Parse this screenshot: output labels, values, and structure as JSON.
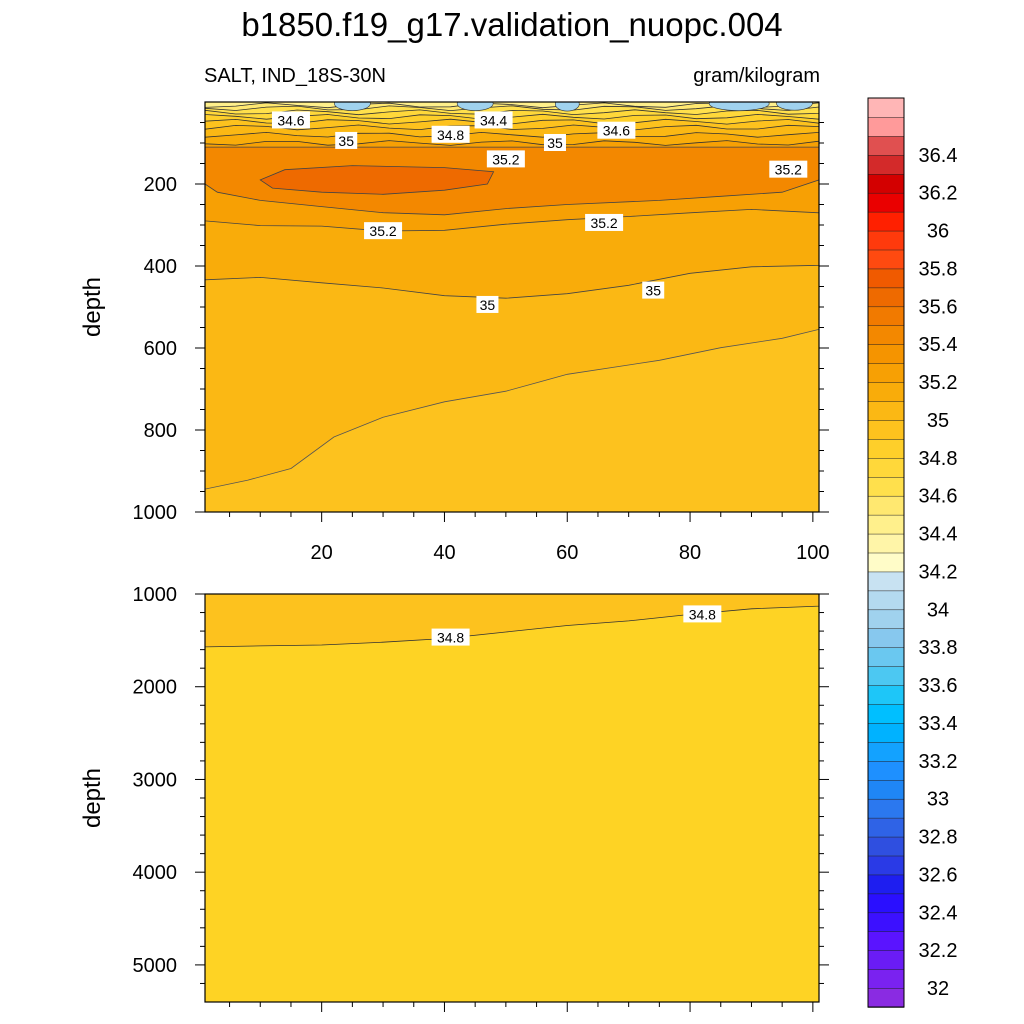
{
  "chart_data": {
    "type": "contour",
    "title": "b1850.f19_g17.validation_nuopc.004",
    "variable_label": "SALT, IND_18S-30N",
    "units_label": "gram/kilogram",
    "panels": [
      {
        "name": "upper",
        "ylabel": "depth",
        "xlim": [
          1,
          101
        ],
        "ylim": [
          0,
          1000
        ],
        "y_inverted": true,
        "x_ticks": [
          20,
          40,
          60,
          80,
          100
        ],
        "x_tick_labels": [
          "20",
          "40",
          "60",
          "80",
          "100"
        ],
        "y_ticks": [
          200,
          400,
          600,
          800,
          1000
        ],
        "y_tick_labels": [
          "200",
          "400",
          "600",
          "800",
          "1000"
        ],
        "contour_labels": [
          {
            "text": "34.6",
            "x": 15,
            "y": 45
          },
          {
            "text": "34.4",
            "x": 48,
            "y": 45
          },
          {
            "text": "35",
            "x": 24,
            "y": 95
          },
          {
            "text": "34.8",
            "x": 41,
            "y": 80
          },
          {
            "text": "35",
            "x": 58,
            "y": 100
          },
          {
            "text": "34.6",
            "x": 68,
            "y": 70
          },
          {
            "text": "35.2",
            "x": 50,
            "y": 140
          },
          {
            "text": "35.2",
            "x": 96,
            "y": 165
          },
          {
            "text": "35.2",
            "x": 30,
            "y": 315
          },
          {
            "text": "35.2",
            "x": 66,
            "y": 295
          },
          {
            "text": "35",
            "x": 47,
            "y": 495
          },
          {
            "text": "35",
            "x": 74,
            "y": 460
          }
        ]
      },
      {
        "name": "lower",
        "ylabel": "depth",
        "xlim": [
          1,
          101
        ],
        "ylim": [
          1000,
          5400
        ],
        "y_inverted": true,
        "x_ticks": [
          20,
          40,
          60,
          80,
          100
        ],
        "y_ticks": [
          1000,
          2000,
          3000,
          4000,
          5000
        ],
        "y_tick_labels": [
          "1000",
          "2000",
          "3000",
          "4000",
          "5000"
        ],
        "contour_labels": [
          {
            "text": "34.8",
            "x": 41,
            "y": 1470
          },
          {
            "text": "34.8",
            "x": 82,
            "y": 1220
          }
        ]
      }
    ],
    "colorbar": {
      "levels": [
        32,
        32.1,
        32.2,
        32.3,
        32.4,
        32.5,
        32.6,
        32.7,
        32.8,
        32.9,
        33,
        33.1,
        33.2,
        33.3,
        33.4,
        33.5,
        33.6,
        33.7,
        33.8,
        33.9,
        34,
        34.1,
        34.2,
        34.3,
        34.4,
        34.5,
        34.6,
        34.7,
        34.8,
        34.9,
        35,
        35.1,
        35.2,
        35.3,
        35.4,
        35.5,
        35.6,
        35.7,
        35.8,
        35.9,
        36,
        36.1,
        36.2,
        36.3,
        36.4,
        36.5
      ],
      "labels": [
        "32",
        "32.2",
        "32.4",
        "32.6",
        "32.8",
        "33",
        "33.2",
        "33.4",
        "33.6",
        "33.8",
        "34",
        "34.2",
        "34.4",
        "34.6",
        "34.8",
        "35",
        "35.2",
        "35.4",
        "35.6",
        "35.8",
        "36",
        "36.2",
        "36.4"
      ],
      "colors": [
        "#8a2be2",
        "#7a22f0",
        "#6a1cf5",
        "#5a14ff",
        "#3c10ff",
        "#2a0fff",
        "#1e1ef0",
        "#2a3ae6",
        "#2f4fe0",
        "#2f63e6",
        "#2b78ef",
        "#1f86f5",
        "#1e90ff",
        "#13a2ff",
        "#00b2ff",
        "#00bfff",
        "#1ec6f8",
        "#4cc8f2",
        "#6ac8f0",
        "#87c8ee",
        "#a0d2ee",
        "#b4daf0",
        "#c8e2f2",
        "#fffcc8",
        "#fff5a8",
        "#fff08c",
        "#ffe870",
        "#ffe04c",
        "#ffd83a",
        "#fecf2a",
        "#fdc21e",
        "#fbb814",
        "#f9ac0a",
        "#f7a004",
        "#f59400",
        "#f38800",
        "#f17a00",
        "#ee6a00",
        "#f05a00",
        "#ff4a10",
        "#ff3a0c",
        "#ff2000",
        "#ea0000",
        "#d30000",
        "#d32a2a",
        "#e05050",
        "#ff9a9a",
        "#ffb6b6"
      ]
    }
  }
}
